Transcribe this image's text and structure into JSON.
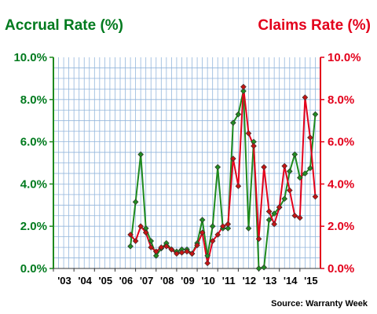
{
  "titles": {
    "left": "Accrual Rate (%)",
    "right": "Claims Rate (%)"
  },
  "source": "Source: Warranty Week",
  "colors": {
    "accrual": "#1e8a1e",
    "claims": "#e3001b",
    "accrual_text": "#007a1e",
    "claims_text": "#e3001b",
    "grid": "#93b6dc",
    "plot_bg": "#ffffff"
  },
  "chart_data": {
    "type": "line",
    "grid": true,
    "x_ticks": [
      "'03",
      "'04",
      "'05",
      "'06",
      "'07",
      "'08",
      "'09",
      "'10",
      "'11",
      "'12",
      "'13",
      "'14",
      "'15"
    ],
    "xlim": [
      2003,
      2016
    ],
    "y_left": {
      "ticks": [
        "0.0%",
        "2.0%",
        "4.0%",
        "6.0%",
        "8.0%",
        "10.0%"
      ],
      "ylim": [
        0,
        10
      ]
    },
    "y_right": {
      "ticks": [
        "0.0%",
        "2.0%",
        "4.0%",
        "6.0%",
        "8.0%",
        "10.0%"
      ],
      "ylim": [
        0,
        10
      ]
    },
    "series": [
      {
        "name": "Accrual Rate (%)",
        "axis": "left",
        "x": [
          2006.75,
          2007.0,
          2007.25,
          2007.5,
          2007.75,
          2008.0,
          2008.25,
          2008.5,
          2008.75,
          2009.0,
          2009.25,
          2009.5,
          2009.75,
          2010.0,
          2010.25,
          2010.5,
          2010.75,
          2011.0,
          2011.25,
          2011.5,
          2011.75,
          2012.0,
          2012.25,
          2012.5,
          2012.75,
          2013.0,
          2013.25,
          2013.5,
          2013.75,
          2014.0,
          2014.25,
          2014.5,
          2014.75,
          2015.0,
          2015.25,
          2015.5,
          2015.75
        ],
        "values": [
          1.05,
          3.15,
          5.4,
          1.9,
          1.3,
          0.6,
          0.95,
          1.2,
          0.9,
          0.8,
          0.9,
          0.9,
          0.7,
          1.2,
          2.3,
          0.6,
          2.0,
          4.8,
          1.9,
          1.9,
          6.9,
          7.3,
          8.4,
          1.9,
          6.0,
          0.0,
          0.05,
          2.3,
          2.6,
          2.9,
          3.3,
          4.6,
          5.4,
          4.3,
          4.5,
          4.75,
          7.3
        ]
      },
      {
        "name": "Claims Rate (%)",
        "axis": "right",
        "x": [
          2006.75,
          2007.0,
          2007.25,
          2007.5,
          2007.75,
          2008.0,
          2008.25,
          2008.5,
          2008.75,
          2009.0,
          2009.25,
          2009.5,
          2009.75,
          2010.0,
          2010.25,
          2010.5,
          2010.75,
          2011.0,
          2011.25,
          2011.5,
          2011.75,
          2012.0,
          2012.25,
          2012.5,
          2012.75,
          2013.0,
          2013.25,
          2013.5,
          2013.75,
          2014.0,
          2014.25,
          2014.5,
          2014.75,
          2015.0,
          2015.25,
          2015.5,
          2015.75
        ],
        "values": [
          1.6,
          1.3,
          2.0,
          1.7,
          1.0,
          0.8,
          1.0,
          1.05,
          0.9,
          0.7,
          0.75,
          0.8,
          0.7,
          1.1,
          1.7,
          0.25,
          1.3,
          1.6,
          2.0,
          2.1,
          5.2,
          3.9,
          8.6,
          6.4,
          5.8,
          1.4,
          4.8,
          2.7,
          2.1,
          2.9,
          4.85,
          3.7,
          2.5,
          2.4,
          8.1,
          6.2,
          3.4
        ]
      }
    ]
  }
}
